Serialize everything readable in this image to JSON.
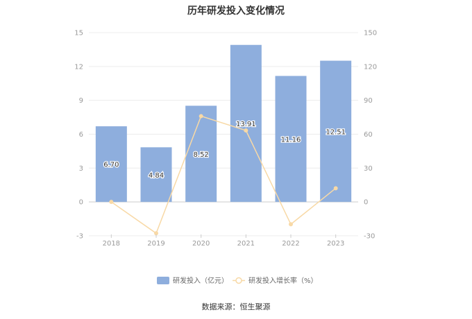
{
  "title": "历年研发投入变化情况",
  "source": "数据来源：恒生聚源",
  "colors": {
    "bar": "#8eaedd",
    "line": "#f8d9a6",
    "grid": "#ececec",
    "axis": "#cccccc"
  },
  "chart_data": {
    "type": "bar",
    "title": "历年研发投入变化情况",
    "categories": [
      "2018",
      "2019",
      "2020",
      "2021",
      "2022",
      "2023"
    ],
    "series": [
      {
        "name": "研发投入（亿元）",
        "type": "bar",
        "axis": "left",
        "values": [
          6.7,
          4.84,
          8.52,
          13.91,
          11.16,
          12.51
        ],
        "labels": [
          "6.70",
          "4.84",
          "8.52",
          "13.91",
          "11.16",
          "12.51"
        ]
      },
      {
        "name": "研发投入增长率（%）",
        "type": "line",
        "axis": "right",
        "values": [
          0,
          -27.8,
          76.0,
          63.3,
          -19.8,
          12.1
        ]
      }
    ],
    "y_left": {
      "min": -3,
      "max": 15,
      "ticks": [
        "-3",
        "0",
        "3",
        "6",
        "9",
        "12",
        "15"
      ]
    },
    "y_right": {
      "min": -30,
      "max": 150,
      "ticks": [
        "-30",
        "0",
        "30",
        "60",
        "90",
        "120",
        "150"
      ]
    },
    "grid": true,
    "legend_position": "bottom"
  }
}
